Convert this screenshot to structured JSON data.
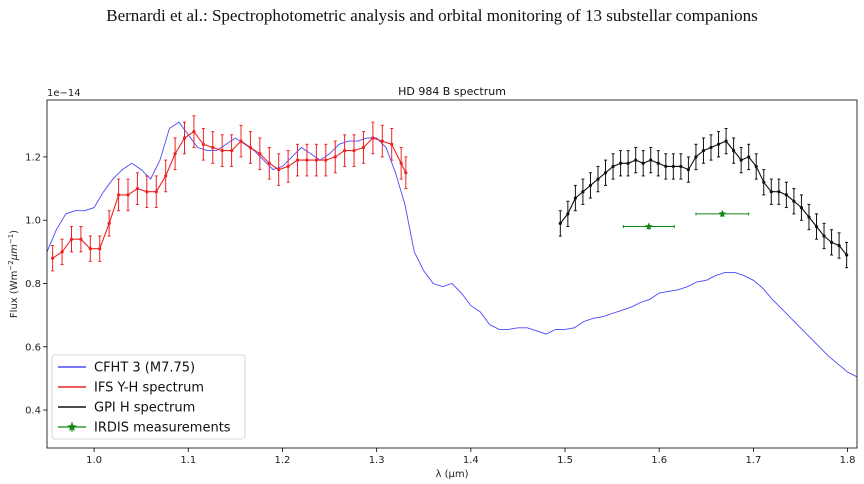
{
  "page_header": "Bernardi et al.: Spectrophotometric analysis and orbital monitoring of 13 substellar companions",
  "chart_data": {
    "type": "line",
    "title": "HD 984 B spectrum",
    "xlabel": "λ (μm)",
    "ylabel_parts": [
      "Flux (Wm",
      "−2",
      "μm",
      "−1",
      ")"
    ],
    "offset_text": "1e−14",
    "xlim": [
      0.95,
      1.81
    ],
    "ylim": [
      0.28,
      1.38
    ],
    "grid": false,
    "legend_position": "lower-left",
    "x_ticks": [
      1.0,
      1.1,
      1.2,
      1.3,
      1.4,
      1.5,
      1.6,
      1.7,
      1.8
    ],
    "x_tick_labels": [
      "1.0",
      "1.1",
      "1.2",
      "1.3",
      "1.4",
      "1.5",
      "1.6",
      "1.7",
      "1.8"
    ],
    "y_ticks": [
      0.4,
      0.6,
      0.8,
      1.0,
      1.2
    ],
    "y_tick_labels": [
      "0.4",
      "0.6",
      "0.8",
      "1.0",
      "1.2"
    ],
    "series": [
      {
        "name": "CFHT 3 (M7.75)",
        "kind": "line",
        "color": "#4a4aff",
        "x": [
          0.95,
          0.96,
          0.97,
          0.98,
          0.99,
          1.0,
          1.01,
          1.02,
          1.03,
          1.04,
          1.05,
          1.06,
          1.07,
          1.08,
          1.09,
          1.1,
          1.11,
          1.12,
          1.13,
          1.14,
          1.15,
          1.16,
          1.17,
          1.18,
          1.19,
          1.2,
          1.21,
          1.22,
          1.23,
          1.24,
          1.25,
          1.26,
          1.27,
          1.28,
          1.29,
          1.3,
          1.31,
          1.32,
          1.33,
          1.34,
          1.35,
          1.36,
          1.37,
          1.38,
          1.39,
          1.4,
          1.41,
          1.42,
          1.43,
          1.44,
          1.45,
          1.46,
          1.47,
          1.48,
          1.49,
          1.5,
          1.51,
          1.52,
          1.53,
          1.54,
          1.55,
          1.56,
          1.57,
          1.58,
          1.59,
          1.6,
          1.61,
          1.62,
          1.63,
          1.64,
          1.65,
          1.66,
          1.67,
          1.68,
          1.69,
          1.7,
          1.71,
          1.72,
          1.73,
          1.74,
          1.75,
          1.76,
          1.77,
          1.78,
          1.79,
          1.8,
          1.81
        ],
        "y": [
          0.9,
          0.97,
          1.02,
          1.03,
          1.03,
          1.04,
          1.09,
          1.13,
          1.16,
          1.18,
          1.16,
          1.13,
          1.19,
          1.29,
          1.31,
          1.27,
          1.23,
          1.22,
          1.22,
          1.24,
          1.26,
          1.24,
          1.22,
          1.19,
          1.16,
          1.17,
          1.2,
          1.23,
          1.21,
          1.19,
          1.21,
          1.24,
          1.25,
          1.25,
          1.26,
          1.26,
          1.23,
          1.15,
          1.05,
          0.9,
          0.84,
          0.8,
          0.79,
          0.8,
          0.77,
          0.73,
          0.71,
          0.67,
          0.655,
          0.655,
          0.66,
          0.66,
          0.65,
          0.64,
          0.655,
          0.655,
          0.66,
          0.68,
          0.69,
          0.695,
          0.705,
          0.715,
          0.725,
          0.74,
          0.75,
          0.77,
          0.775,
          0.78,
          0.79,
          0.805,
          0.81,
          0.825,
          0.835,
          0.835,
          0.825,
          0.81,
          0.785,
          0.75,
          0.72,
          0.69,
          0.66,
          0.63,
          0.6,
          0.57,
          0.545,
          0.52,
          0.505
        ]
      },
      {
        "name": "IFS Y-H spectrum",
        "kind": "line_with_errorbars",
        "color": "#ee2222",
        "x": [
          0.956,
          0.966,
          0.976,
          0.986,
          0.996,
          1.006,
          1.016,
          1.026,
          1.036,
          1.046,
          1.056,
          1.066,
          1.076,
          1.086,
          1.096,
          1.106,
          1.116,
          1.126,
          1.136,
          1.146,
          1.156,
          1.166,
          1.176,
          1.186,
          1.196,
          1.206,
          1.216,
          1.226,
          1.236,
          1.246,
          1.256,
          1.266,
          1.276,
          1.286,
          1.296,
          1.306,
          1.316,
          1.326,
          1.331
        ],
        "y": [
          0.88,
          0.9,
          0.94,
          0.94,
          0.91,
          0.91,
          0.99,
          1.08,
          1.08,
          1.1,
          1.09,
          1.09,
          1.14,
          1.21,
          1.26,
          1.28,
          1.24,
          1.23,
          1.22,
          1.22,
          1.25,
          1.23,
          1.21,
          1.18,
          1.16,
          1.17,
          1.19,
          1.19,
          1.19,
          1.19,
          1.2,
          1.22,
          1.22,
          1.23,
          1.26,
          1.25,
          1.24,
          1.18,
          1.15
        ],
        "err": [
          0.04,
          0.04,
          0.04,
          0.04,
          0.04,
          0.04,
          0.04,
          0.05,
          0.05,
          0.05,
          0.05,
          0.05,
          0.05,
          0.05,
          0.05,
          0.05,
          0.05,
          0.05,
          0.05,
          0.05,
          0.05,
          0.05,
          0.05,
          0.05,
          0.05,
          0.05,
          0.05,
          0.05,
          0.05,
          0.05,
          0.05,
          0.05,
          0.05,
          0.05,
          0.05,
          0.05,
          0.05,
          0.05,
          0.05
        ]
      },
      {
        "name": "GPI H spectrum",
        "kind": "line_with_errorbars",
        "color": "#111111",
        "x": [
          1.495,
          1.503,
          1.511,
          1.519,
          1.527,
          1.535,
          1.543,
          1.551,
          1.559,
          1.567,
          1.575,
          1.583,
          1.591,
          1.599,
          1.607,
          1.615,
          1.623,
          1.631,
          1.639,
          1.647,
          1.655,
          1.663,
          1.671,
          1.679,
          1.687,
          1.695,
          1.703,
          1.711,
          1.719,
          1.727,
          1.735,
          1.743,
          1.751,
          1.759,
          1.767,
          1.775,
          1.783,
          1.791,
          1.799
        ],
        "y": [
          0.99,
          1.02,
          1.07,
          1.09,
          1.11,
          1.13,
          1.15,
          1.17,
          1.18,
          1.18,
          1.19,
          1.18,
          1.19,
          1.18,
          1.17,
          1.17,
          1.17,
          1.16,
          1.2,
          1.22,
          1.23,
          1.24,
          1.25,
          1.22,
          1.19,
          1.2,
          1.17,
          1.12,
          1.09,
          1.09,
          1.08,
          1.06,
          1.04,
          1.01,
          0.98,
          0.95,
          0.93,
          0.92,
          0.89
        ],
        "err": [
          0.04,
          0.04,
          0.04,
          0.04,
          0.04,
          0.04,
          0.04,
          0.04,
          0.04,
          0.04,
          0.04,
          0.04,
          0.04,
          0.04,
          0.04,
          0.04,
          0.04,
          0.04,
          0.04,
          0.04,
          0.04,
          0.04,
          0.04,
          0.04,
          0.04,
          0.04,
          0.04,
          0.04,
          0.04,
          0.04,
          0.04,
          0.04,
          0.04,
          0.04,
          0.04,
          0.04,
          0.04,
          0.04,
          0.04
        ]
      },
      {
        "name": "IRDIS measurements",
        "kind": "points_with_xerr",
        "color": "#118811",
        "x": [
          1.589,
          1.667
        ],
        "y": [
          0.98,
          1.02
        ],
        "xerr": [
          0.027,
          0.028
        ],
        "yerr": [
          0.01,
          0.01
        ]
      }
    ]
  }
}
